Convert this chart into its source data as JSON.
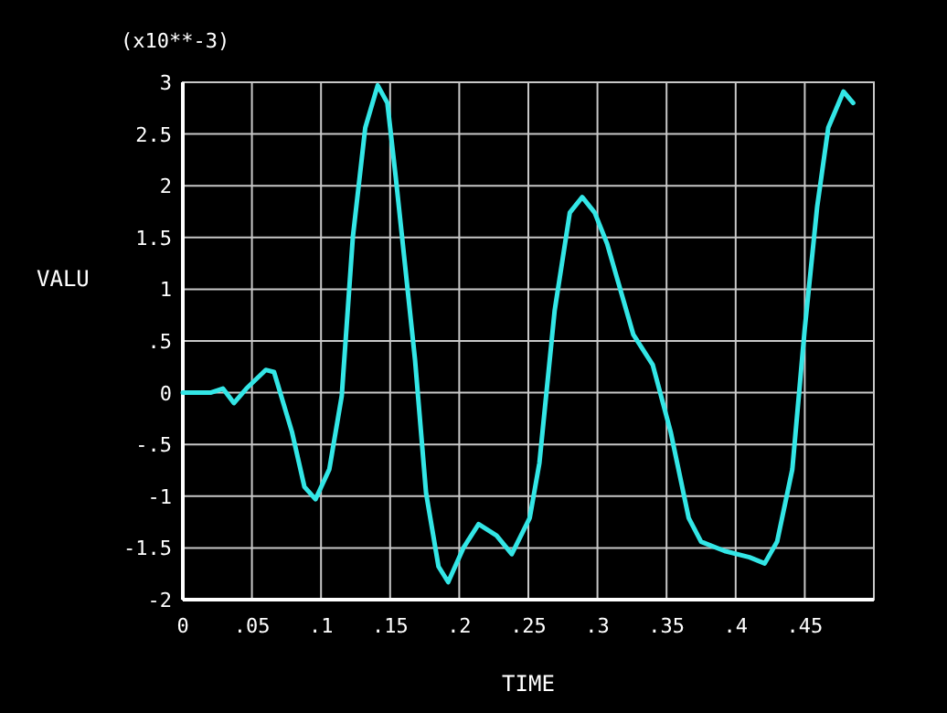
{
  "chart_data": {
    "type": "line",
    "xlabel": "TIME",
    "ylabel": "VALU",
    "annotations": [
      "(x10**-3)"
    ],
    "xlim": [
      0,
      0.5
    ],
    "ylim": [
      -2,
      3
    ],
    "xticks": [
      0,
      {
        "value": 0.05,
        "label": ".05"
      },
      {
        "value": 0.1,
        "label": ".1"
      },
      {
        "value": 0.15,
        "label": ".15"
      },
      {
        "value": 0.2,
        "label": ".2"
      },
      {
        "value": 0.25,
        "label": ".25"
      },
      {
        "value": 0.3,
        "label": ".3"
      },
      {
        "value": 0.35,
        "label": ".35"
      },
      {
        "value": 0.4,
        "label": ".4"
      },
      {
        "value": 0.45,
        "label": ".45"
      },
      {
        "value": 0.5,
        "label": null
      }
    ],
    "yticks": [
      -2,
      -1.5,
      -1,
      {
        "value": -0.5,
        "label": "-.5"
      },
      0,
      {
        "value": 0.5,
        "label": ".5"
      },
      1,
      1.5,
      2,
      2.5,
      3
    ],
    "grid": true,
    "marker": "none",
    "line_style": "solid",
    "x": [
      0,
      0.02,
      0.029,
      0.037,
      0.046,
      0.06,
      0.066,
      0.079,
      0.088,
      0.096,
      0.106,
      0.115,
      0.123,
      0.132,
      0.141,
      0.148,
      0.154,
      0.168,
      0.176,
      0.185,
      0.192,
      0.203,
      0.214,
      0.227,
      0.238,
      0.251,
      0.258,
      0.269,
      0.28,
      0.289,
      0.298,
      0.307,
      0.326,
      0.34,
      0.353,
      0.366,
      0.375,
      0.392,
      0.41,
      0.421,
      0.43,
      0.441,
      0.45,
      0.459,
      0.467,
      0.478,
      0.485
    ],
    "series": [
      {
        "color": "#33e6e6",
        "values": [
          0,
          0,
          0.04,
          -0.1,
          0.04,
          0.22,
          0.2,
          -0.38,
          -0.91,
          -1.03,
          -0.74,
          -0.03,
          1.5,
          2.56,
          2.97,
          2.8,
          2.09,
          0.32,
          -0.97,
          -1.68,
          -1.83,
          -1.5,
          -1.27,
          -1.38,
          -1.56,
          -1.21,
          -0.68,
          0.79,
          1.74,
          1.89,
          1.74,
          1.44,
          0.56,
          0.27,
          -0.38,
          -1.21,
          -1.44,
          -1.53,
          -1.59,
          -1.65,
          -1.44,
          -0.74,
          0.62,
          1.8,
          2.56,
          2.91,
          2.8
        ]
      }
    ]
  }
}
